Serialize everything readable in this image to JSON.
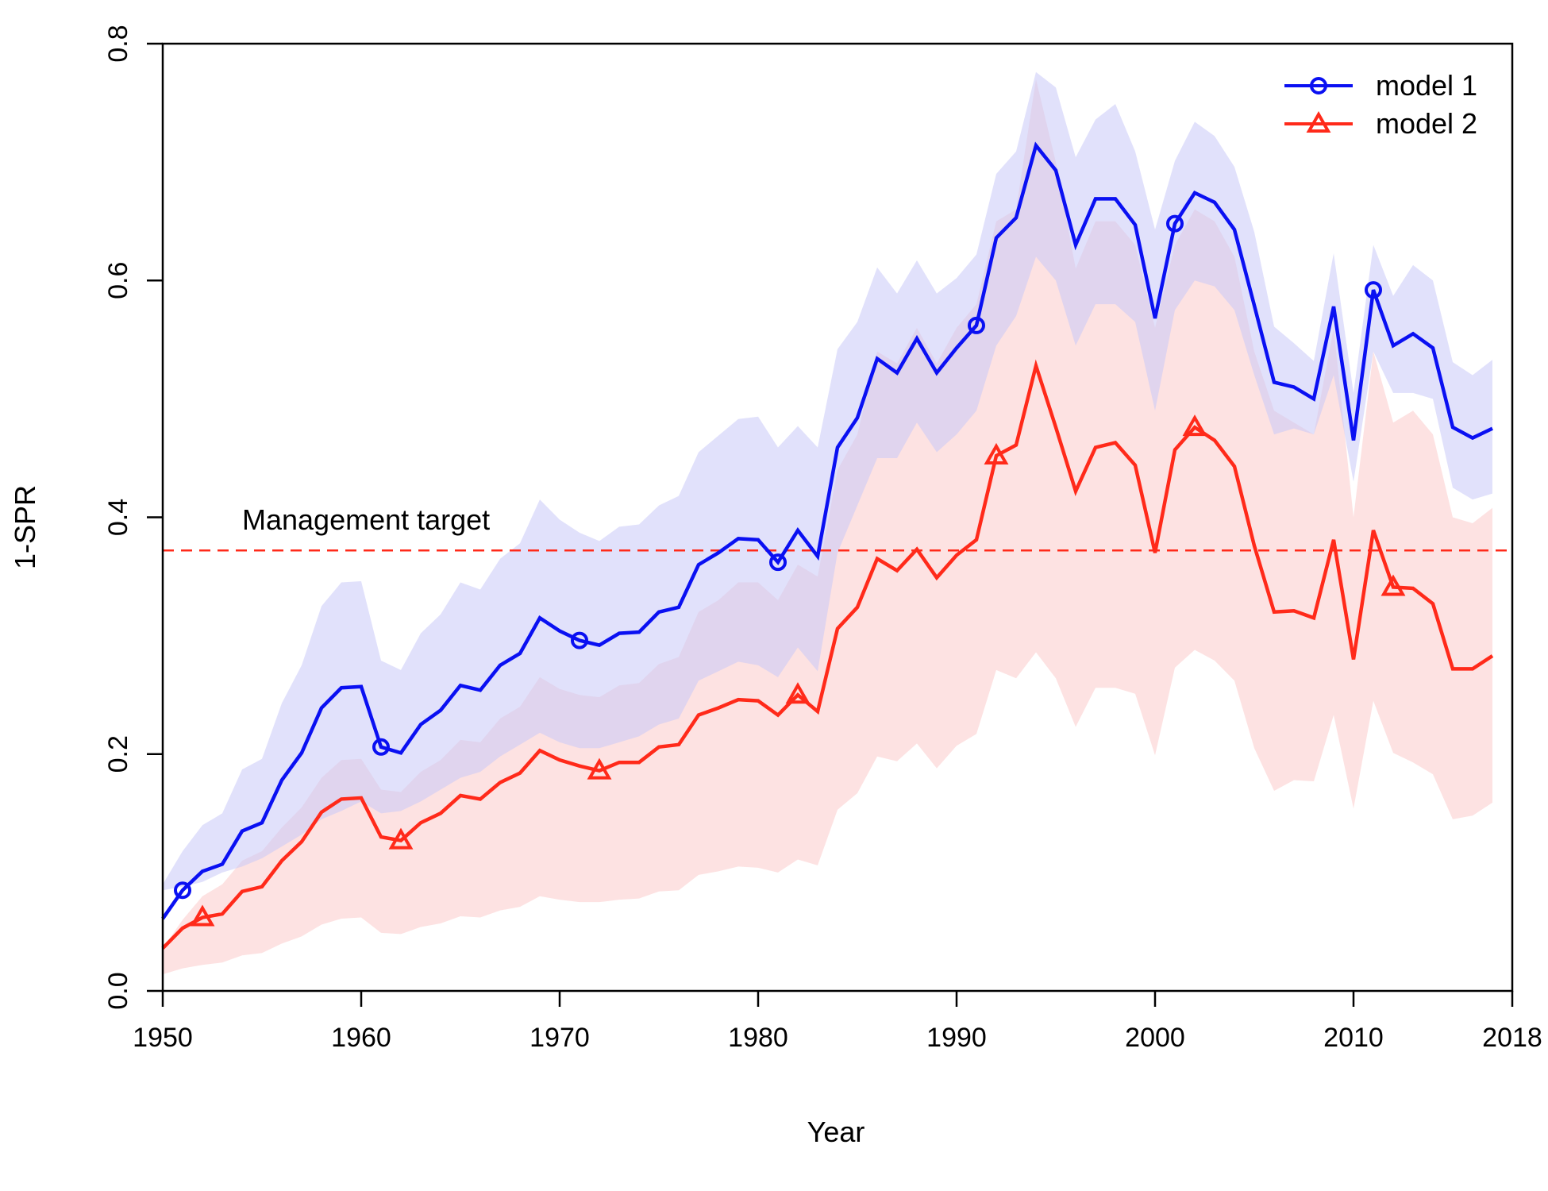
{
  "chart_data": {
    "type": "line",
    "title": "",
    "xlabel": "Year",
    "ylabel": "1-SPR",
    "xlim": [
      1950,
      2018
    ],
    "ylim": [
      0,
      0.8
    ],
    "x_ticks": [
      1950,
      1960,
      1970,
      1980,
      1990,
      2000,
      2010,
      2018
    ],
    "y_ticks": [
      0.0,
      0.2,
      0.4,
      0.6,
      0.8
    ],
    "y_tick_labels": [
      "0.0",
      "0.2",
      "0.4",
      "0.6",
      "0.8"
    ],
    "grid": false,
    "legend_position": "top-right",
    "x": [
      1950,
      1951,
      1952,
      1953,
      1954,
      1955,
      1956,
      1957,
      1958,
      1959,
      1960,
      1961,
      1962,
      1963,
      1964,
      1965,
      1966,
      1967,
      1968,
      1969,
      1970,
      1971,
      1972,
      1973,
      1974,
      1975,
      1976,
      1977,
      1978,
      1979,
      1980,
      1981,
      1982,
      1983,
      1984,
      1985,
      1986,
      1987,
      1988,
      1989,
      1990,
      1991,
      1992,
      1993,
      1994,
      1995,
      1996,
      1997,
      1998,
      1999,
      2000,
      2001,
      2002,
      2003,
      2004,
      2005,
      2006,
      2007,
      2008,
      2009,
      2010,
      2011,
      2012,
      2013,
      2014,
      2015,
      2016,
      2017
    ],
    "reference_line": {
      "label": "Management target",
      "value": 0.372,
      "color": "#ff2a1a",
      "style": "dashed"
    },
    "series": [
      {
        "name": "model 1",
        "color": "#0a10f2",
        "band_color": "#c8c8f8",
        "marker": "circle",
        "marker_indices": [
          1,
          11,
          21,
          31,
          41,
          51,
          61
        ],
        "values": [
          0.061,
          0.085,
          0.101,
          0.107,
          0.135,
          0.142,
          0.178,
          0.201,
          0.239,
          0.256,
          0.257,
          0.206,
          0.201,
          0.225,
          0.237,
          0.258,
          0.254,
          0.275,
          0.285,
          0.315,
          0.304,
          0.296,
          0.292,
          0.302,
          0.303,
          0.32,
          0.324,
          0.36,
          0.37,
          0.382,
          0.381,
          0.362,
          0.389,
          0.367,
          0.459,
          0.484,
          0.534,
          0.522,
          0.551,
          0.522,
          0.543,
          0.562,
          0.636,
          0.653,
          0.714,
          0.693,
          0.63,
          0.669,
          0.669,
          0.647,
          0.568,
          0.648,
          0.674,
          0.666,
          0.643,
          0.579,
          0.514,
          0.51,
          0.5,
          0.578,
          0.465,
          0.592,
          0.545,
          0.555,
          0.543,
          0.476,
          0.467,
          0.475
        ],
        "lower": [
          0.085,
          0.088,
          0.092,
          0.1,
          0.105,
          0.112,
          0.122,
          0.132,
          0.145,
          0.152,
          0.16,
          0.15,
          0.152,
          0.16,
          0.17,
          0.18,
          0.185,
          0.198,
          0.208,
          0.218,
          0.21,
          0.205,
          0.205,
          0.21,
          0.215,
          0.225,
          0.23,
          0.262,
          0.27,
          0.278,
          0.275,
          0.265,
          0.29,
          0.27,
          0.37,
          0.41,
          0.45,
          0.45,
          0.48,
          0.455,
          0.47,
          0.49,
          0.545,
          0.57,
          0.62,
          0.6,
          0.545,
          0.58,
          0.58,
          0.565,
          0.49,
          0.575,
          0.6,
          0.595,
          0.575,
          0.52,
          0.47,
          0.475,
          0.47,
          0.52,
          0.43,
          0.54,
          0.505,
          0.505,
          0.5,
          0.425,
          0.415,
          0.42
        ],
        "upper": [
          0.09,
          0.118,
          0.14,
          0.15,
          0.187,
          0.196,
          0.243,
          0.275,
          0.325,
          0.345,
          0.346,
          0.279,
          0.271,
          0.302,
          0.318,
          0.345,
          0.339,
          0.365,
          0.378,
          0.415,
          0.398,
          0.387,
          0.38,
          0.392,
          0.394,
          0.41,
          0.418,
          0.455,
          0.469,
          0.483,
          0.485,
          0.459,
          0.477,
          0.459,
          0.542,
          0.565,
          0.611,
          0.589,
          0.617,
          0.589,
          0.602,
          0.622,
          0.69,
          0.709,
          0.776,
          0.763,
          0.704,
          0.736,
          0.749,
          0.709,
          0.643,
          0.701,
          0.734,
          0.722,
          0.696,
          0.641,
          0.561,
          0.547,
          0.532,
          0.623,
          0.505,
          0.63,
          0.587,
          0.613,
          0.6,
          0.531,
          0.52,
          0.533
        ]
      },
      {
        "name": "model 2",
        "color": "#ff2a1a",
        "band_color": "#fcd2d2",
        "marker": "triangle",
        "marker_indices": [
          2,
          12,
          22,
          32,
          42,
          52,
          62
        ],
        "values": [
          0.036,
          0.053,
          0.062,
          0.065,
          0.084,
          0.088,
          0.11,
          0.126,
          0.151,
          0.162,
          0.163,
          0.13,
          0.127,
          0.142,
          0.15,
          0.165,
          0.162,
          0.176,
          0.184,
          0.203,
          0.195,
          0.19,
          0.186,
          0.193,
          0.193,
          0.206,
          0.208,
          0.233,
          0.239,
          0.246,
          0.245,
          0.233,
          0.25,
          0.236,
          0.306,
          0.324,
          0.365,
          0.355,
          0.373,
          0.349,
          0.368,
          0.381,
          0.452,
          0.461,
          0.528,
          0.476,
          0.422,
          0.459,
          0.463,
          0.444,
          0.37,
          0.457,
          0.476,
          0.465,
          0.443,
          0.376,
          0.32,
          0.321,
          0.315,
          0.381,
          0.28,
          0.389,
          0.341,
          0.34,
          0.327,
          0.272,
          0.272,
          0.283
        ],
        "lower": [
          0.014,
          0.019,
          0.022,
          0.024,
          0.03,
          0.032,
          0.04,
          0.046,
          0.056,
          0.061,
          0.062,
          0.049,
          0.048,
          0.054,
          0.057,
          0.063,
          0.062,
          0.068,
          0.071,
          0.08,
          0.077,
          0.075,
          0.075,
          0.077,
          0.078,
          0.084,
          0.085,
          0.098,
          0.101,
          0.105,
          0.104,
          0.1,
          0.111,
          0.106,
          0.153,
          0.167,
          0.198,
          0.194,
          0.209,
          0.188,
          0.207,
          0.217,
          0.271,
          0.264,
          0.286,
          0.264,
          0.223,
          0.256,
          0.256,
          0.251,
          0.199,
          0.273,
          0.288,
          0.279,
          0.262,
          0.205,
          0.169,
          0.178,
          0.177,
          0.233,
          0.154,
          0.245,
          0.201,
          0.193,
          0.183,
          0.145,
          0.148,
          0.159
        ],
        "upper": [
          0.036,
          0.06,
          0.08,
          0.09,
          0.11,
          0.118,
          0.138,
          0.155,
          0.18,
          0.195,
          0.196,
          0.17,
          0.168,
          0.185,
          0.195,
          0.212,
          0.21,
          0.23,
          0.24,
          0.265,
          0.255,
          0.25,
          0.248,
          0.258,
          0.26,
          0.276,
          0.282,
          0.32,
          0.33,
          0.345,
          0.345,
          0.33,
          0.36,
          0.35,
          0.44,
          0.47,
          0.54,
          0.53,
          0.56,
          0.53,
          0.56,
          0.58,
          0.65,
          0.66,
          0.77,
          0.7,
          0.61,
          0.65,
          0.65,
          0.63,
          0.56,
          0.63,
          0.66,
          0.65,
          0.62,
          0.54,
          0.49,
          0.48,
          0.47,
          0.56,
          0.4,
          0.54,
          0.48,
          0.49,
          0.47,
          0.4,
          0.395,
          0.408
        ]
      }
    ]
  }
}
